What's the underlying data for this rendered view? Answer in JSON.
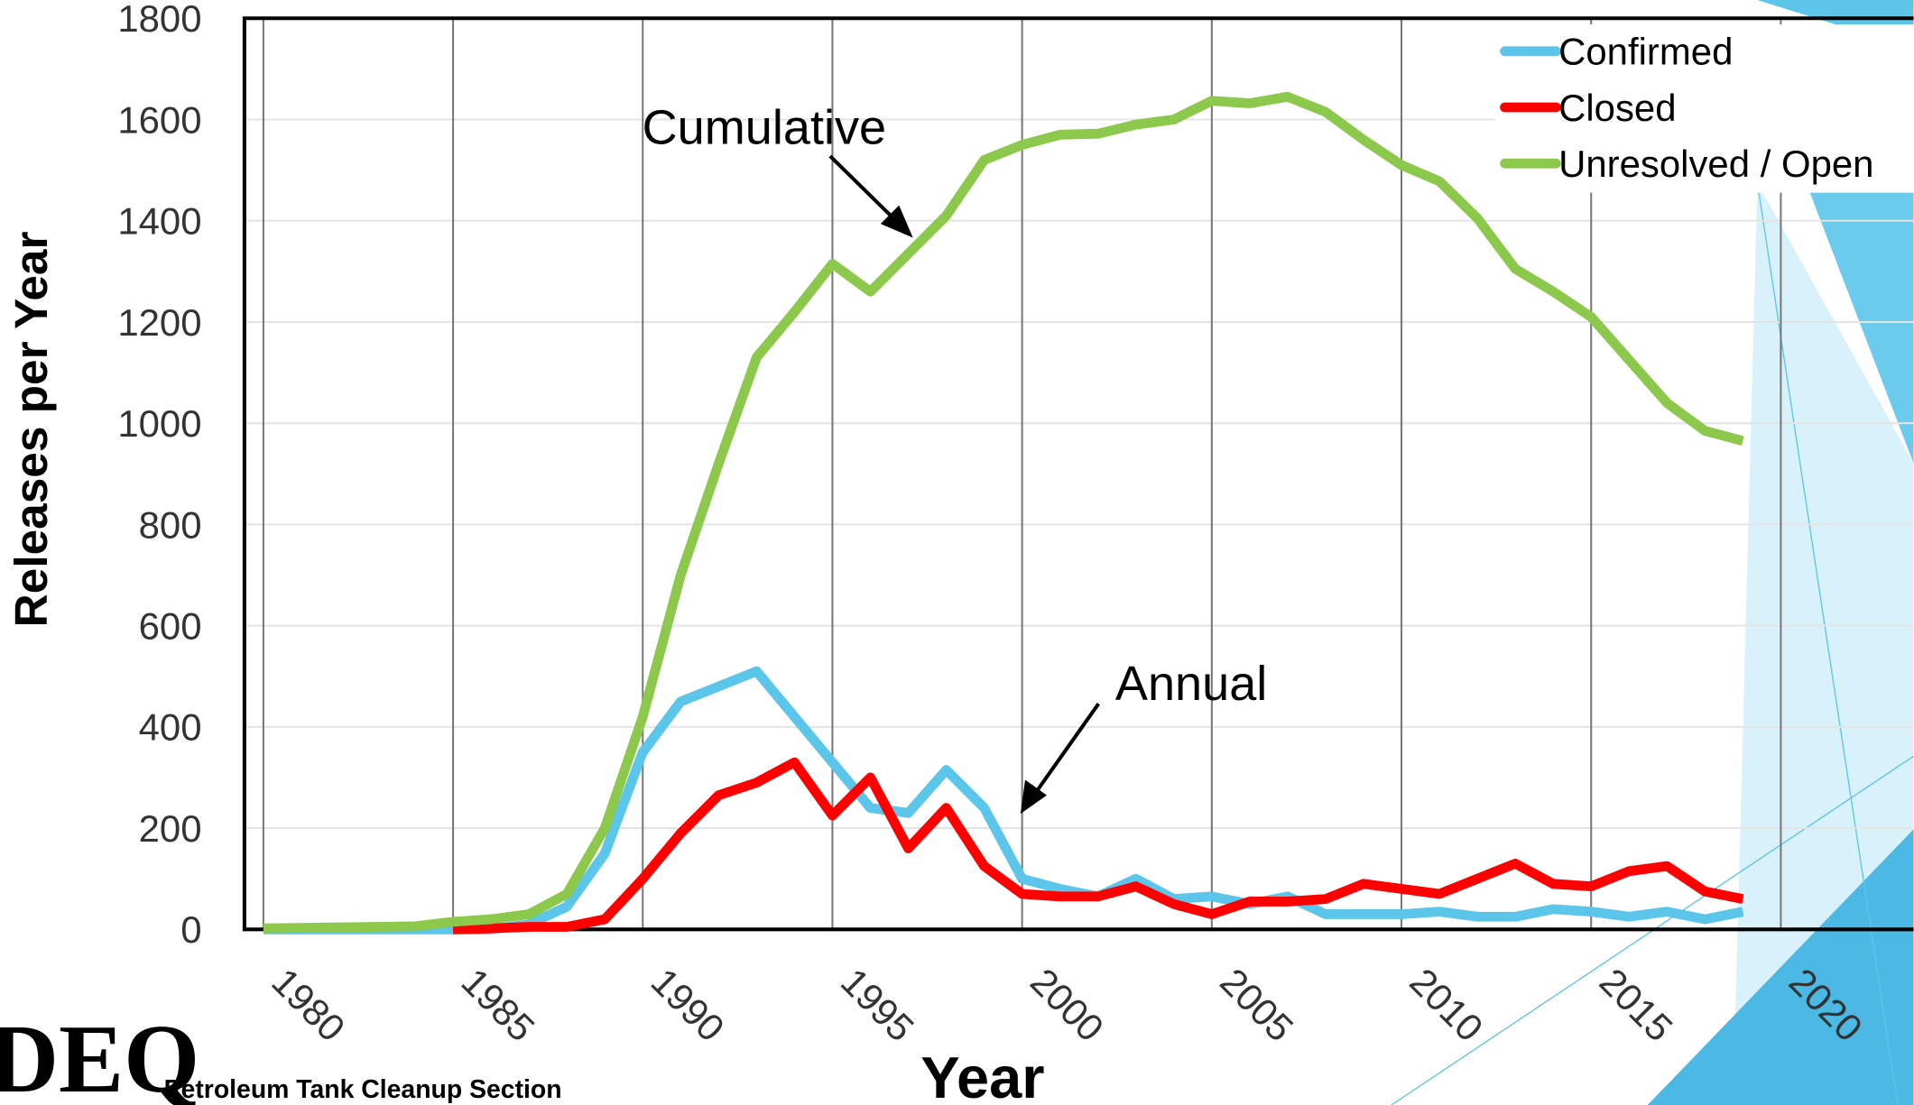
{
  "chart_data": {
    "type": "line",
    "y_label": "Releases per Year",
    "x_label": "Year",
    "annotations": [
      "Cumulative",
      "Annual"
    ],
    "footer": "Petroleum Tank Cleanup Section",
    "logo": "DEQ",
    "x": [
      1980,
      1981,
      1982,
      1983,
      1984,
      1985,
      1986,
      1987,
      1988,
      1989,
      1990,
      1991,
      1992,
      1993,
      1994,
      1995,
      1996,
      1997,
      1998,
      1999,
      2000,
      2001,
      2002,
      2003,
      2004,
      2005,
      2006,
      2007,
      2008,
      2009,
      2010,
      2011,
      2012,
      2013,
      2014,
      2015,
      2016,
      2017,
      2018,
      2019
    ],
    "series": [
      {
        "name": "Confirmed",
        "color": "#5bc5ea",
        "values": [
          0,
          0,
          0,
          0,
          0,
          0,
          0,
          10,
          45,
          150,
          350,
          450,
          480,
          510,
          420,
          330,
          240,
          230,
          315,
          240,
          100,
          80,
          65,
          100,
          60,
          65,
          50,
          65,
          30,
          30,
          30,
          35,
          25,
          25,
          40,
          35,
          25,
          35,
          20,
          35
        ]
      },
      {
        "name": "Closed",
        "color": "#ff0000",
        "values": [
          null,
          null,
          null,
          null,
          null,
          0,
          2,
          5,
          5,
          20,
          100,
          190,
          265,
          290,
          330,
          225,
          300,
          160,
          240,
          125,
          70,
          65,
          65,
          85,
          50,
          30,
          55,
          55,
          60,
          90,
          80,
          70,
          100,
          130,
          90,
          85,
          115,
          125,
          75,
          60
        ]
      },
      {
        "name": "Unresolved / Open",
        "color": "#8cc84b",
        "values": [
          2,
          3,
          4,
          5,
          6,
          15,
          20,
          30,
          70,
          200,
          420,
          700,
          920,
          1130,
          1220,
          1315,
          1260,
          1335,
          1410,
          1520,
          1550,
          1570,
          1572,
          1590,
          1600,
          1637,
          1632,
          1645,
          1615,
          1560,
          1510,
          1478,
          1405,
          1305,
          1260,
          1210,
          1125,
          1040,
          985,
          965
        ]
      }
    ],
    "xlim": [
      1979.5,
      2023.5
    ],
    "xticks": [
      1980,
      1985,
      1990,
      1995,
      2000,
      2005,
      2010,
      2015,
      2020
    ],
    "ylim": [
      0,
      1800
    ],
    "yticks": [
      0,
      200,
      400,
      600,
      800,
      1000,
      1200,
      1400,
      1600,
      1800
    ],
    "grid": true,
    "legend": "upper right"
  }
}
